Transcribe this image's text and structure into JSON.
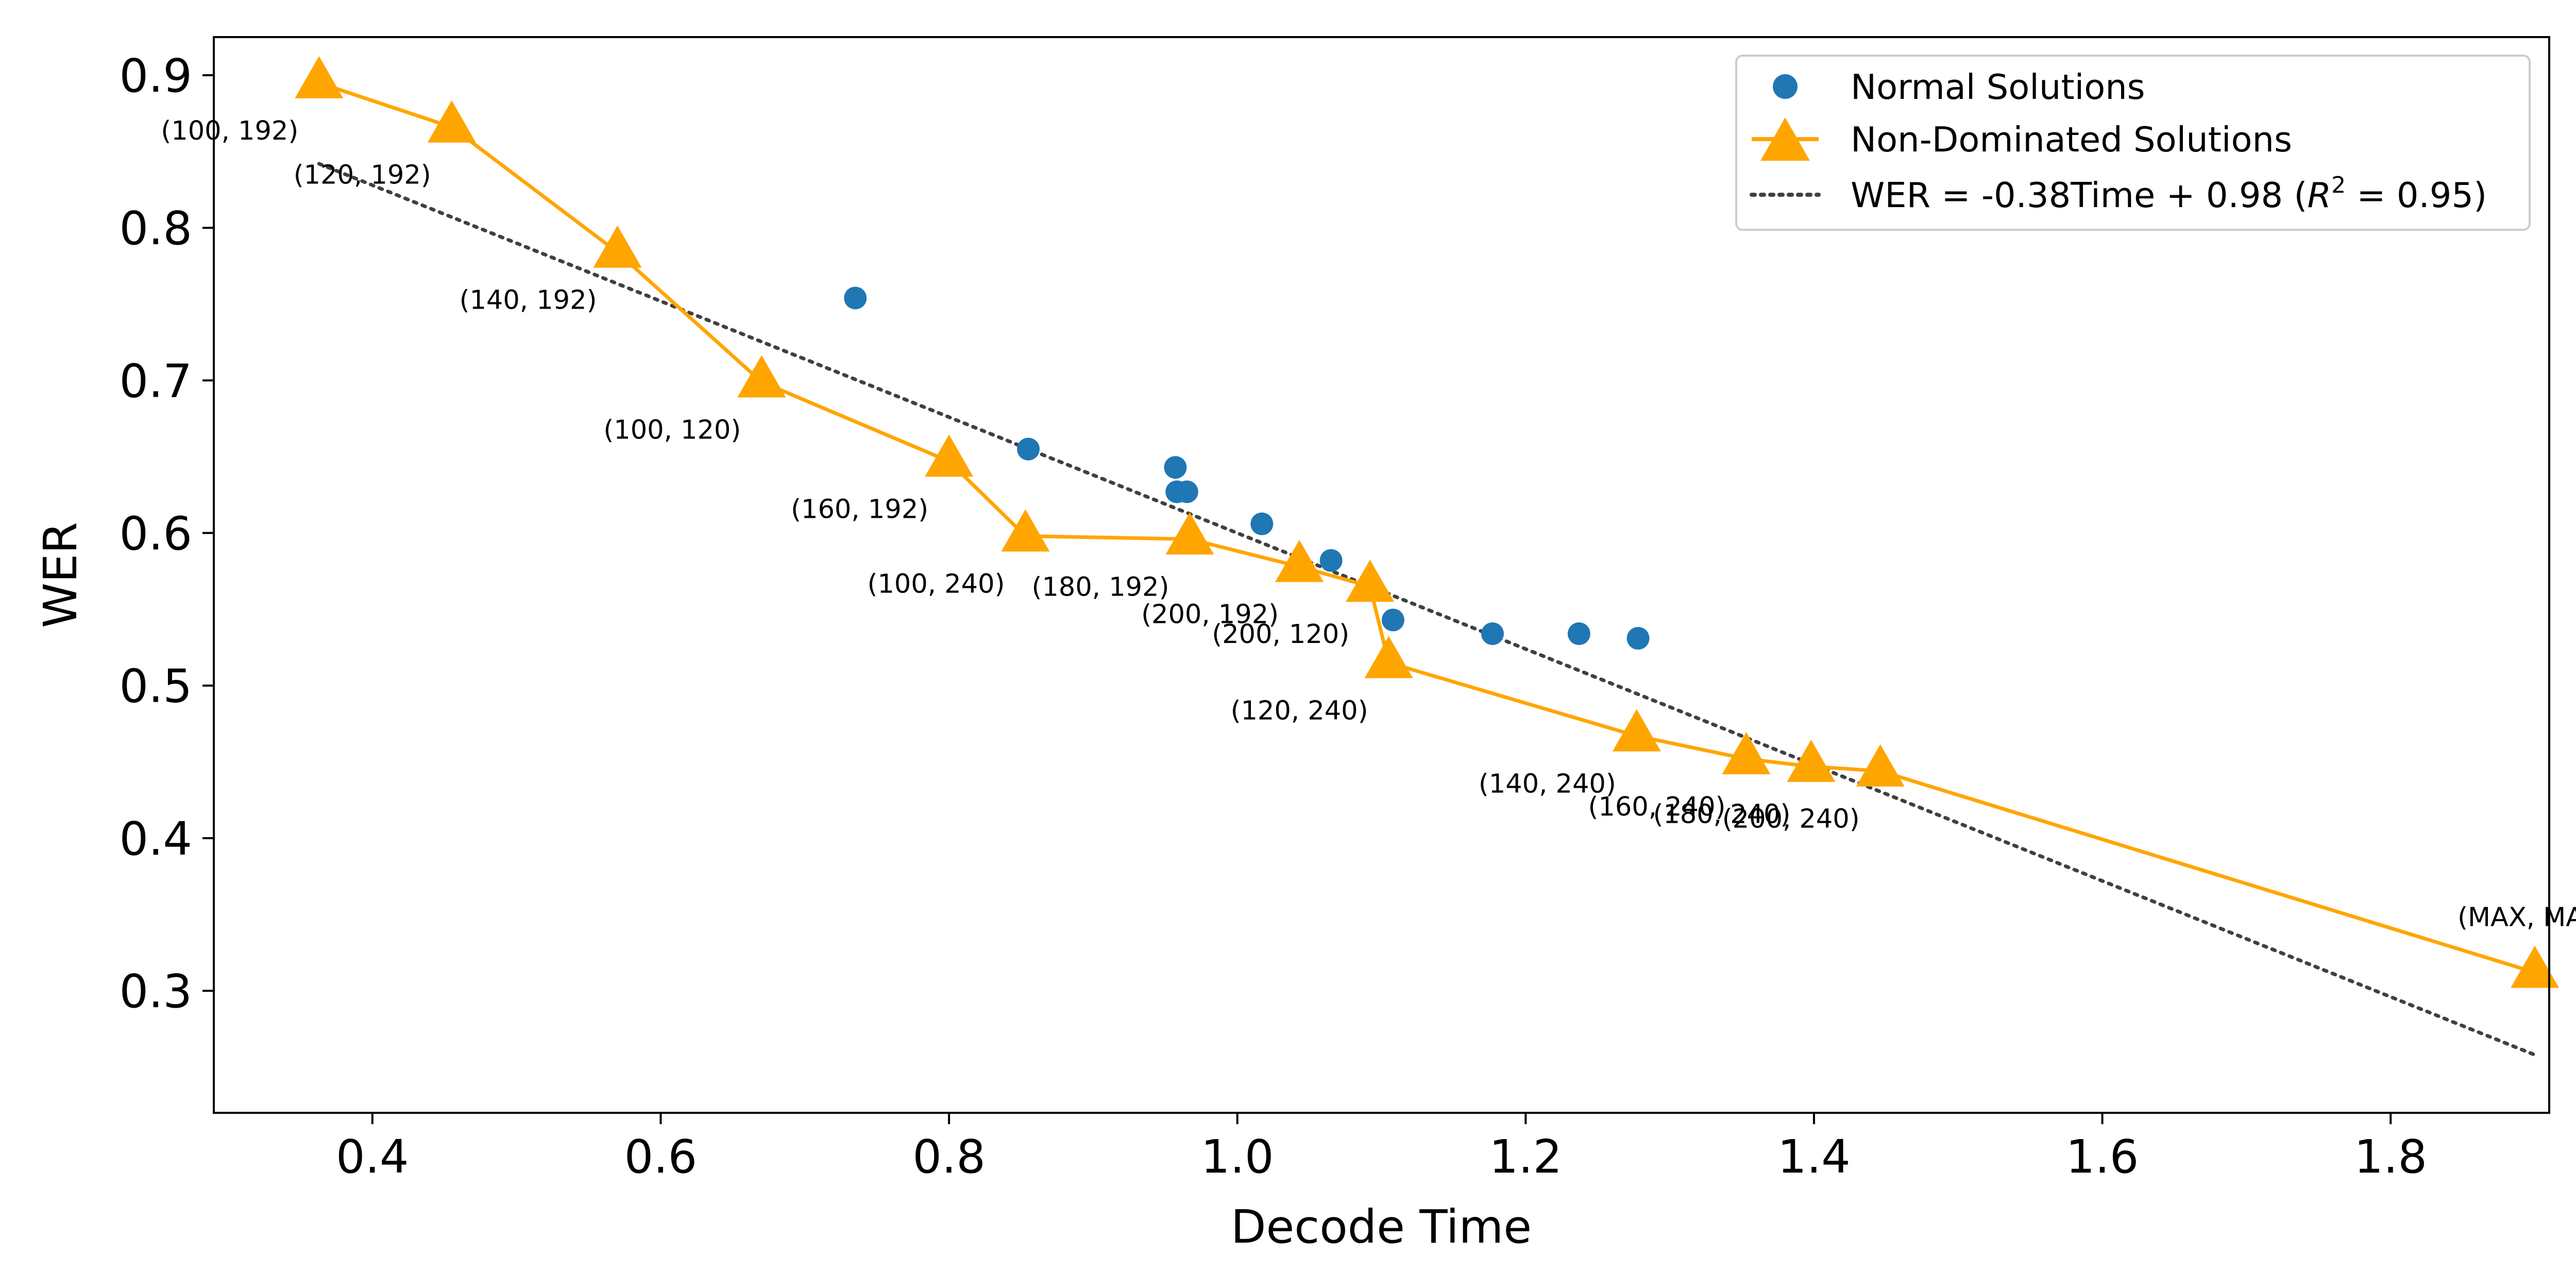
{
  "chart_data": {
    "type": "scatter",
    "xlabel": "Decode Time",
    "ylabel": "WER",
    "xlim": [
      0.29,
      1.91
    ],
    "ylim": [
      0.22,
      0.925
    ],
    "xticks": [
      0.4,
      0.6,
      0.8,
      1.0,
      1.2,
      1.4,
      1.6,
      1.8
    ],
    "xtick_labels": [
      "0.4",
      "0.6",
      "0.8",
      "1.0",
      "1.2",
      "1.4",
      "1.6",
      "1.8"
    ],
    "yticks": [
      0.3,
      0.4,
      0.5,
      0.6,
      0.7,
      0.8,
      0.9
    ],
    "ytick_labels": [
      "0.3",
      "0.4",
      "0.5",
      "0.6",
      "0.7",
      "0.8",
      "0.9"
    ],
    "grid": false,
    "legend_position": "top-right",
    "series": [
      {
        "name": "Normal Solutions",
        "kind": "scatter",
        "color": "#1f77b4",
        "marker": "circle",
        "points": [
          {
            "x": 0.735,
            "y": 0.754
          },
          {
            "x": 0.855,
            "y": 0.655
          },
          {
            "x": 0.957,
            "y": 0.643
          },
          {
            "x": 0.958,
            "y": 0.627
          },
          {
            "x": 0.965,
            "y": 0.627
          },
          {
            "x": 1.017,
            "y": 0.606
          },
          {
            "x": 1.065,
            "y": 0.582
          },
          {
            "x": 1.108,
            "y": 0.543
          },
          {
            "x": 1.177,
            "y": 0.534
          },
          {
            "x": 1.237,
            "y": 0.534
          },
          {
            "x": 1.278,
            "y": 0.531
          }
        ]
      },
      {
        "name": "Non-Dominated Solutions",
        "kind": "line-marker",
        "color": "#ffa500",
        "marker": "triangle",
        "points": [
          {
            "x": 0.363,
            "y": 0.895,
            "label": "(100, 192)"
          },
          {
            "x": 0.455,
            "y": 0.866,
            "label": "(120, 192)"
          },
          {
            "x": 0.57,
            "y": 0.784,
            "label": "(140, 192)"
          },
          {
            "x": 0.67,
            "y": 0.699,
            "label": "(100, 120)"
          },
          {
            "x": 0.8,
            "y": 0.647,
            "label": "(160, 192)"
          },
          {
            "x": 0.853,
            "y": 0.598,
            "label": "(100, 240)"
          },
          {
            "x": 0.967,
            "y": 0.596,
            "label": "(180, 192)"
          },
          {
            "x": 1.043,
            "y": 0.578,
            "label": "(200, 192)"
          },
          {
            "x": 1.092,
            "y": 0.565,
            "label": "(200, 120)"
          },
          {
            "x": 1.105,
            "y": 0.515,
            "label": "(120, 240)"
          },
          {
            "x": 1.277,
            "y": 0.467,
            "label": "(140, 240)"
          },
          {
            "x": 1.353,
            "y": 0.452,
            "label": "(160, 240)"
          },
          {
            "x": 1.398,
            "y": 0.447,
            "label": "(180, 240)"
          },
          {
            "x": 1.446,
            "y": 0.444,
            "label": "(200, 240)"
          },
          {
            "x": 1.9,
            "y": 0.312,
            "label": "(MAX, MAX)"
          }
        ]
      },
      {
        "name": "WER = -0.38Time + 0.98 (R² = 0.95)",
        "kind": "fit-line",
        "color": "#404040",
        "dash": "dotted",
        "points": [
          {
            "x": 0.363,
            "y": 0.842
          },
          {
            "x": 1.9,
            "y": 0.258
          }
        ]
      }
    ]
  },
  "legend": {
    "normal": "Normal Solutions",
    "nondominated": "Non-Dominated Solutions",
    "fit_prefix": "WER = -0.38Time + 0.98 (",
    "fit_r": "R",
    "fit_sup": "2",
    "fit_suffix": " = 0.95)"
  }
}
